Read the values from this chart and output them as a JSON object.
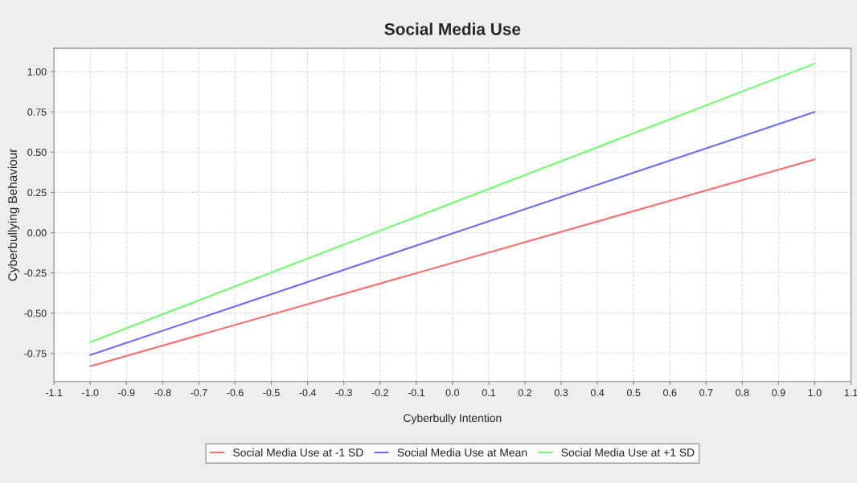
{
  "chart_data": {
    "type": "line",
    "title": "Social Media Use",
    "xlabel": "Cyberbully Intention",
    "ylabel": "Cyberbullying Behaviour",
    "x": [
      -1.0,
      1.0
    ],
    "series": [
      {
        "name": "Social Media Use at -1 SD",
        "color": "#ff6b6b",
        "values": [
          -0.83,
          0.455
        ]
      },
      {
        "name": "Social Media Use at Mean",
        "color": "#6b6bff",
        "values": [
          -0.76,
          0.75
        ]
      },
      {
        "name": "Social Media Use at +1 SD",
        "color": "#6bff6b",
        "values": [
          -0.68,
          1.05
        ]
      }
    ],
    "xlim": [
      -1.1,
      1.1
    ],
    "xticks": [
      -1.1,
      {
        "value": -1,
        "label": "-1.0"
      },
      -0.9,
      -0.8,
      -0.7,
      -0.6,
      -0.5,
      -0.4,
      -0.3,
      -0.2,
      -0.1,
      {
        "value": 0,
        "label": "0.0"
      },
      0.1,
      0.2,
      0.3,
      0.4,
      0.5,
      0.6,
      0.7,
      0.8,
      0.9,
      {
        "value": 1,
        "label": "1.0"
      },
      1.1
    ],
    "ylim": [
      -0.925,
      1.145
    ],
    "yticks": [
      {
        "value": -0.75,
        "label": "-0.75"
      },
      {
        "value": -0.5,
        "label": "-0.50"
      },
      {
        "value": -0.25,
        "label": "-0.25"
      },
      {
        "value": 0,
        "label": "0.00"
      },
      {
        "value": 0.25,
        "label": "0.25"
      },
      {
        "value": 0.5,
        "label": "0.50"
      },
      {
        "value": 0.75,
        "label": "0.75"
      },
      {
        "value": 1.0,
        "label": "1.00"
      }
    ],
    "grid": true,
    "legend": "bottom",
    "marker": "none",
    "line_style": "solid"
  }
}
